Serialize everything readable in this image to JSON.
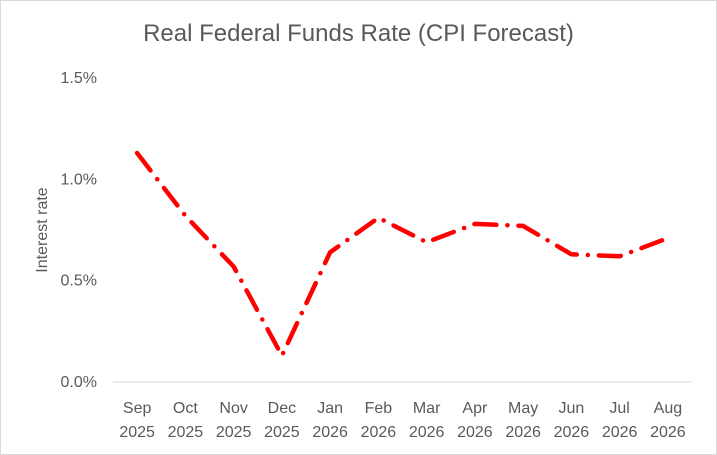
{
  "chart_data": {
    "type": "line",
    "title": "Real Federal Funds Rate (CPI Forecast)",
    "xlabel": "",
    "ylabel": "Interest rate",
    "categories": [
      [
        "Sep",
        "2025"
      ],
      [
        "Oct",
        "2025"
      ],
      [
        "Nov",
        "2025"
      ],
      [
        "Dec",
        "2025"
      ],
      [
        "Jan",
        "2026"
      ],
      [
        "Feb",
        "2026"
      ],
      [
        "Mar",
        "2026"
      ],
      [
        "Apr",
        "2026"
      ],
      [
        "May",
        "2026"
      ],
      [
        "Jun",
        "2026"
      ],
      [
        "Jul",
        "2026"
      ],
      [
        "Aug",
        "2026"
      ]
    ],
    "y_ticks": [
      "0.0%",
      "0.5%",
      "1.0%",
      "1.5%"
    ],
    "y_tick_values": [
      0.0,
      0.5,
      1.0,
      1.5
    ],
    "ylim": [
      0.0,
      1.5
    ],
    "grid": false,
    "series": [
      {
        "name": "Real Federal Funds Rate",
        "color": "#ff0000",
        "line_style": "dash-dot",
        "values": [
          1.13,
          0.82,
          0.57,
          0.13,
          0.64,
          0.81,
          0.69,
          0.78,
          0.77,
          0.63,
          0.62,
          0.71
        ]
      }
    ]
  }
}
